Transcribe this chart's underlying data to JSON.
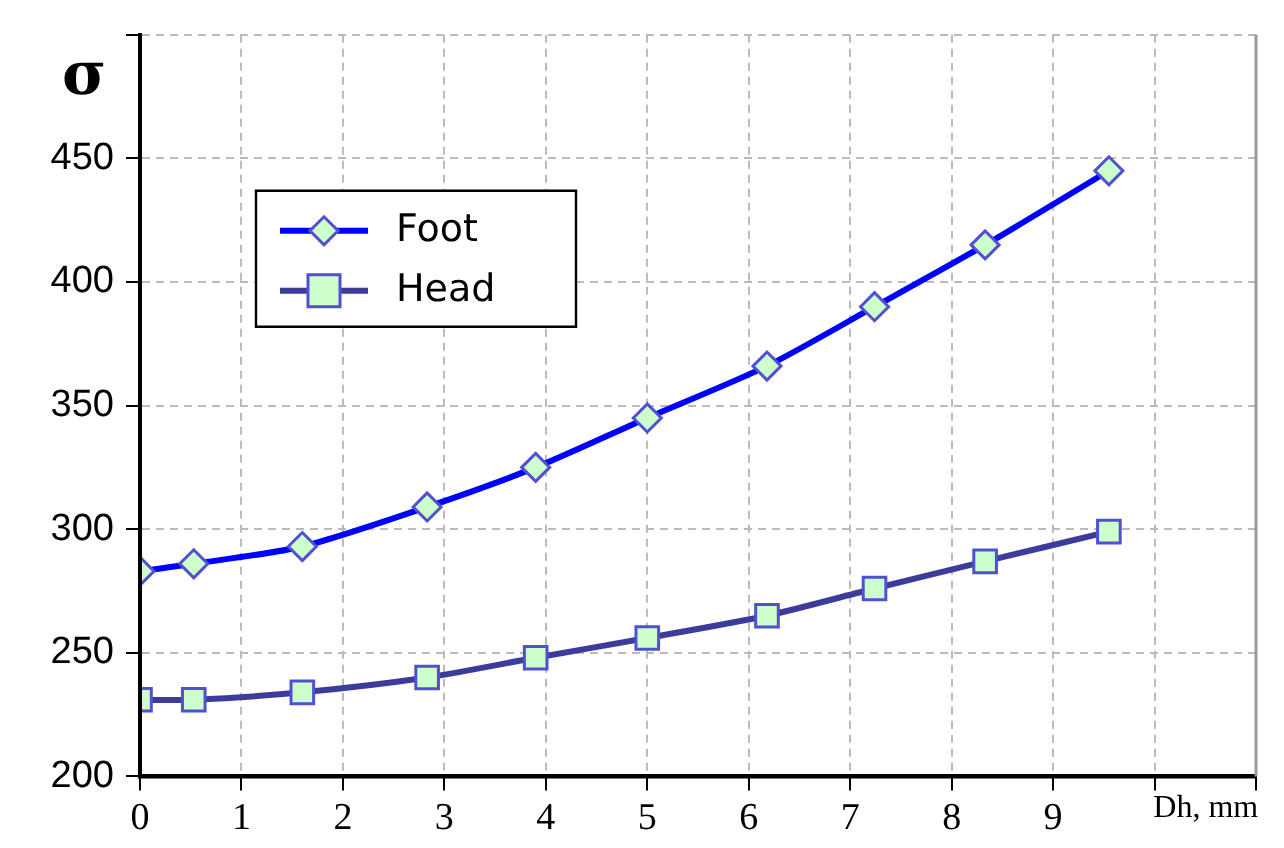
{
  "chart_data": {
    "type": "line",
    "ylabel": "σ",
    "xlabel": "Dh, mm",
    "x": [
      0,
      0.53,
      1.6,
      2.83,
      3.9,
      5.0,
      6.18,
      7.24,
      8.33,
      9.55
    ],
    "series": [
      {
        "name": "Foot",
        "color": "#0000ff",
        "marker": "diamond",
        "values": [
          283,
          286,
          293,
          309,
          325,
          345,
          366,
          390,
          415,
          445
        ]
      },
      {
        "name": "Head",
        "color": "#3c3c9c",
        "marker": "square",
        "values": [
          231,
          231,
          234,
          240,
          248,
          256,
          265,
          276,
          287,
          299
        ]
      }
    ],
    "xlim": [
      0,
      11
    ],
    "xticks": [
      0,
      1,
      2,
      3,
      4,
      5,
      6,
      7,
      8,
      9,
      {
        "value": 10,
        "label": null
      },
      {
        "value": 11,
        "label": null
      }
    ],
    "ylim": [
      200,
      500
    ],
    "yticks": [
      200,
      250,
      300,
      350,
      400,
      450,
      {
        "value": 500,
        "label": null
      }
    ],
    "grid": true,
    "legend": "top left"
  }
}
